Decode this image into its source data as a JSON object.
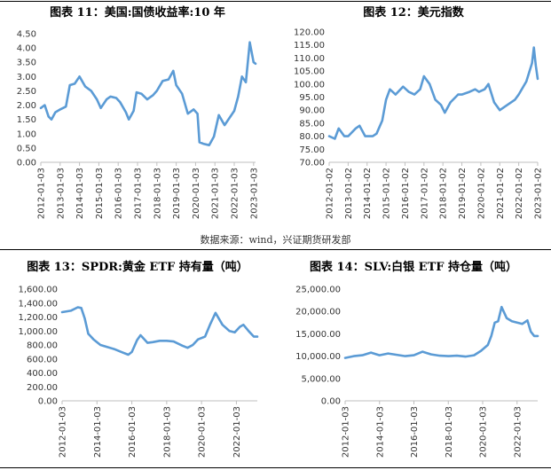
{
  "source_note": "数据来源：wind，兴证期货研发部",
  "chart_data": [
    {
      "id": "c11",
      "type": "line",
      "title": "图表 11：美国:国债收益率:10 年",
      "color": "#5b9bd5",
      "ylim": [
        0,
        4.5
      ],
      "yticks": [
        "0.00",
        "0.50",
        "1.00",
        "1.50",
        "2.00",
        "2.50",
        "3.00",
        "3.50",
        "4.00",
        "4.50"
      ],
      "ytick_values": [
        0,
        0.5,
        1,
        1.5,
        2,
        2.5,
        3,
        3.5,
        4,
        4.5
      ],
      "xlim": [
        2012.0,
        2023.1
      ],
      "xticks": [
        "2012-01-03",
        "2013-01-03",
        "2014-01-03",
        "2015-01-03",
        "2016-01-03",
        "2017-01-03",
        "2018-01-03",
        "2019-01-03",
        "2020-01-03",
        "2021-01-03",
        "2022-01-03",
        "2023-01-03"
      ],
      "xtick_values": [
        2012,
        2013,
        2014,
        2015,
        2016,
        2017,
        2018,
        2019,
        2020,
        2021,
        2022,
        2023
      ],
      "x": [
        2012.0,
        2012.2,
        2012.4,
        2012.55,
        2012.75,
        2013.0,
        2013.3,
        2013.5,
        2013.75,
        2014.0,
        2014.3,
        2014.6,
        2014.9,
        2015.1,
        2015.4,
        2015.6,
        2015.9,
        2016.1,
        2016.4,
        2016.55,
        2016.8,
        2016.95,
        2017.2,
        2017.5,
        2017.8,
        2018.0,
        2018.3,
        2018.6,
        2018.85,
        2019.0,
        2019.3,
        2019.6,
        2019.9,
        2020.1,
        2020.2,
        2020.4,
        2020.7,
        2020.95,
        2021.2,
        2021.5,
        2021.8,
        2022.0,
        2022.2,
        2022.4,
        2022.6,
        2022.8,
        2023.0,
        2023.1
      ],
      "y": [
        1.9,
        2.0,
        1.6,
        1.5,
        1.75,
        1.85,
        1.95,
        2.7,
        2.75,
        3.0,
        2.65,
        2.5,
        2.2,
        1.9,
        2.2,
        2.3,
        2.25,
        2.1,
        1.75,
        1.5,
        1.8,
        2.45,
        2.4,
        2.2,
        2.35,
        2.5,
        2.85,
        2.9,
        3.2,
        2.7,
        2.4,
        1.7,
        1.85,
        1.7,
        0.7,
        0.65,
        0.6,
        0.9,
        1.65,
        1.3,
        1.6,
        1.8,
        2.3,
        3.0,
        2.8,
        4.2,
        3.5,
        3.45
      ]
    },
    {
      "id": "c12",
      "type": "line",
      "title": "图表 12：美元指数",
      "color": "#5b9bd5",
      "ylim": [
        70,
        120
      ],
      "yticks": [
        "70.00",
        "75.00",
        "80.00",
        "85.00",
        "90.00",
        "95.00",
        "100.00",
        "105.00",
        "110.00",
        "115.00",
        "120.00"
      ],
      "ytick_values": [
        70,
        75,
        80,
        85,
        90,
        95,
        100,
        105,
        110,
        115,
        120
      ],
      "xlim": [
        2012.0,
        2023.0
      ],
      "xticks": [
        "2012-01-02",
        "2013-01-02",
        "2014-01-02",
        "2015-01-02",
        "2016-01-02",
        "2017-01-02",
        "2018-01-02",
        "2019-01-02",
        "2020-01-02",
        "2021-01-02",
        "2022-01-02",
        "2023-01-02"
      ],
      "xtick_values": [
        2012,
        2013,
        2014,
        2015,
        2016,
        2017,
        2018,
        2019,
        2020,
        2021,
        2022,
        2023
      ],
      "x": [
        2012.0,
        2012.3,
        2012.5,
        2012.8,
        2013.0,
        2013.4,
        2013.6,
        2013.9,
        2014.3,
        2014.5,
        2014.8,
        2015.0,
        2015.2,
        2015.5,
        2015.9,
        2016.2,
        2016.5,
        2016.8,
        2017.0,
        2017.3,
        2017.6,
        2017.9,
        2018.1,
        2018.4,
        2018.8,
        2019.0,
        2019.4,
        2019.7,
        2019.9,
        2020.2,
        2020.4,
        2020.7,
        2021.0,
        2021.4,
        2021.8,
        2022.0,
        2022.4,
        2022.7,
        2022.8,
        2022.9,
        2023.0
      ],
      "y": [
        80,
        79,
        83,
        80,
        80,
        83,
        84,
        80,
        80,
        81,
        86,
        94,
        98,
        96,
        99,
        97,
        96,
        98,
        103,
        100,
        94,
        92,
        89,
        93,
        96,
        96,
        97,
        98,
        97,
        98,
        100,
        93,
        90,
        92,
        94,
        96,
        101,
        108,
        114,
        107,
        102
      ]
    },
    {
      "id": "c13",
      "type": "line",
      "title": "图表 13：SPDR:黄金 ETF 持有量（吨）",
      "color": "#5b9bd5",
      "ylim": [
        0,
        1600
      ],
      "yticks": [
        "0.00",
        "200.00",
        "400.00",
        "600.00",
        "800.00",
        "1,000.00",
        "1,200.00",
        "1,400.00",
        "1,600.00"
      ],
      "ytick_values": [
        0,
        200,
        400,
        600,
        800,
        1000,
        1200,
        1400,
        1600
      ],
      "xlim": [
        2012.0,
        2023.2
      ],
      "xticks": [
        "2012-01-03",
        "2014-01-03",
        "2016-01-03",
        "2018-01-03",
        "2020-01-03",
        "2022-01-03"
      ],
      "xtick_values": [
        2012,
        2014,
        2016,
        2018,
        2020,
        2022
      ],
      "x": [
        2012.0,
        2012.5,
        2012.9,
        2013.1,
        2013.3,
        2013.5,
        2013.8,
        2014.2,
        2014.6,
        2015.0,
        2015.4,
        2015.8,
        2016.0,
        2016.3,
        2016.5,
        2016.9,
        2017.2,
        2017.6,
        2018.0,
        2018.4,
        2018.9,
        2019.2,
        2019.5,
        2019.8,
        2020.2,
        2020.5,
        2020.8,
        2021.2,
        2021.6,
        2021.9,
        2022.2,
        2022.4,
        2022.7,
        2023.0,
        2023.2
      ],
      "y": [
        1270,
        1290,
        1340,
        1330,
        1180,
        960,
        880,
        800,
        770,
        740,
        700,
        660,
        700,
        870,
        940,
        830,
        840,
        860,
        860,
        850,
        790,
        760,
        800,
        880,
        920,
        1100,
        1260,
        1090,
        1000,
        980,
        1060,
        1090,
        1000,
        920,
        920
      ]
    },
    {
      "id": "c14",
      "type": "line",
      "title": "图表 14：SLV:白银 ETF 持仓量（吨）",
      "color": "#5b9bd5",
      "ylim": [
        0,
        25000
      ],
      "yticks": [
        "0.00",
        "5,000.00",
        "10,000.00",
        "15,000.00",
        "20,000.00",
        "25,000.00"
      ],
      "ytick_values": [
        0,
        5000,
        10000,
        15000,
        20000,
        25000
      ],
      "xlim": [
        2012.0,
        2023.2
      ],
      "xticks": [
        "2012-01-03",
        "2014-01-03",
        "2016-01-03",
        "2018-01-03",
        "2020-01-03",
        "2022-01-03"
      ],
      "xtick_values": [
        2012,
        2014,
        2016,
        2018,
        2020,
        2022
      ],
      "x": [
        2012.0,
        2012.5,
        2013.0,
        2013.5,
        2014.0,
        2014.5,
        2015.0,
        2015.5,
        2016.0,
        2016.5,
        2017.0,
        2017.5,
        2018.0,
        2018.5,
        2019.0,
        2019.5,
        2019.9,
        2020.3,
        2020.5,
        2020.7,
        2020.9,
        2021.1,
        2021.4,
        2021.7,
        2022.0,
        2022.3,
        2022.6,
        2022.8,
        2023.0,
        2023.2
      ],
      "y": [
        9600,
        10000,
        10200,
        10800,
        10200,
        10600,
        10300,
        10000,
        10200,
        11000,
        10400,
        10100,
        10000,
        10100,
        9900,
        10200,
        11200,
        12500,
        14500,
        17500,
        17800,
        21000,
        18500,
        17800,
        17500,
        17200,
        18000,
        15500,
        14500,
        14500
      ]
    }
  ]
}
